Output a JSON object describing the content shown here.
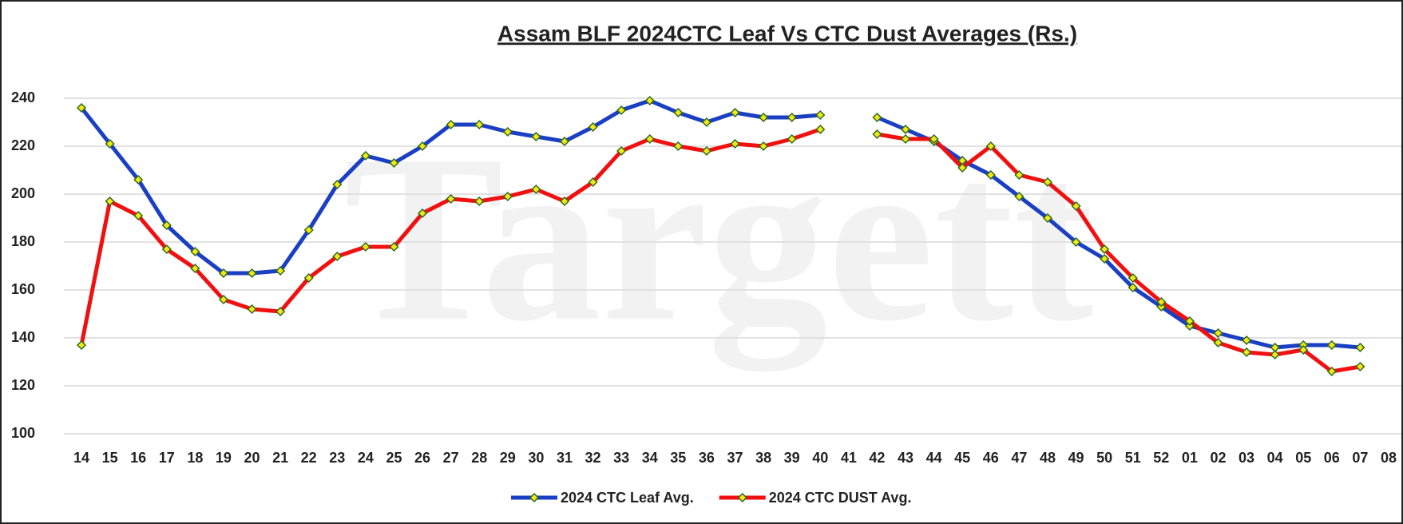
{
  "chart_data": {
    "type": "line",
    "title": "Assam BLF 2024CTC Leaf Vs CTC Dust Averages (Rs.)",
    "categories": [
      "14",
      "15",
      "16",
      "17",
      "18",
      "19",
      "20",
      "21",
      "22",
      "23",
      "24",
      "25",
      "26",
      "27",
      "28",
      "29",
      "30",
      "31",
      "32",
      "33",
      "34",
      "35",
      "36",
      "37",
      "38",
      "39",
      "40",
      "41",
      "42",
      "43",
      "44",
      "45",
      "46",
      "47",
      "48",
      "49",
      "50",
      "51",
      "52",
      "01",
      "02",
      "03",
      "04",
      "05",
      "06",
      "07",
      "08"
    ],
    "series": [
      {
        "name": "2024 CTC Leaf Avg.",
        "color": "#1a3fc4",
        "values": [
          236,
          221,
          206,
          187,
          176,
          167,
          167,
          168,
          185,
          204,
          216,
          213,
          220,
          229,
          229,
          226,
          224,
          222,
          228,
          235,
          239,
          234,
          230,
          234,
          232,
          232,
          233,
          null,
          232,
          227,
          222,
          214,
          208,
          199,
          190,
          180,
          173,
          161,
          153,
          145,
          142,
          139,
          136,
          137,
          137,
          136,
          null
        ]
      },
      {
        "name": "2024 CTC DUST Avg.",
        "color": "#f01010",
        "values": [
          137,
          197,
          191,
          177,
          169,
          156,
          152,
          151,
          165,
          174,
          178,
          178,
          192,
          198,
          197,
          199,
          202,
          197,
          205,
          218,
          223,
          220,
          218,
          221,
          220,
          223,
          227,
          null,
          225,
          223,
          223,
          211,
          220,
          208,
          205,
          195,
          177,
          165,
          155,
          147,
          138,
          134,
          133,
          135,
          126,
          128,
          null
        ]
      }
    ],
    "ylim": [
      100,
      250
    ],
    "yticks": [
      100,
      120,
      140,
      160,
      180,
      200,
      220,
      240
    ],
    "grid": true,
    "legend": "bottom",
    "marker_color": "#f5e61a"
  }
}
